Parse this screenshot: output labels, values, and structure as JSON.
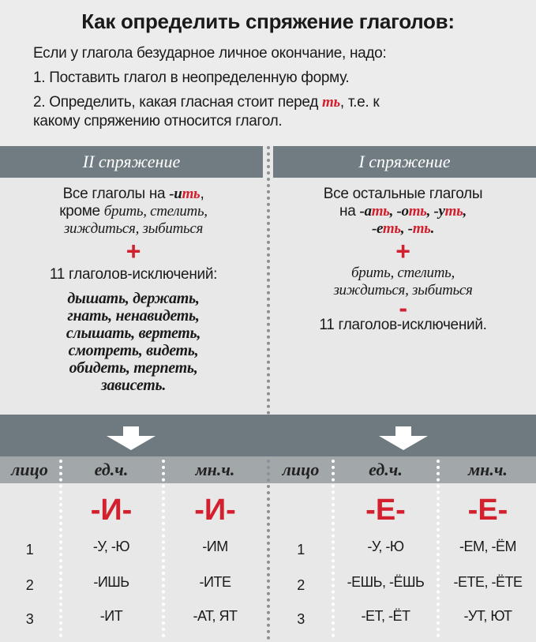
{
  "title": "Как определить спряжение глаголов:",
  "intro": {
    "line1": "Если у глагола безударное личное окончание, надо:",
    "line2": "1. Поставить глагол в неопределенную форму.",
    "line3_a": "2. Определить, какая гласная стоит перед ",
    "line3_b": "ть",
    "line3_c": ", т.е. к",
    "line4": "какому спряжению относится глагол."
  },
  "left": {
    "header": "II спряжение",
    "l1_a": "Все глаголы на ",
    "l1_b": "-и",
    "l1_c": "ть",
    "l1_d": ",",
    "l2_a": "кроме ",
    "l2_b": "брить, стелить,",
    "l3": "зиждиться, зыбиться",
    "plus": "+",
    "exceptions_label": "11 глаголов-исключений:",
    "exceptions": [
      "дышать, держать,",
      "гнать, ненавидеть,",
      "слышать, вертеть,",
      "смотреть, видеть,",
      "обидеть, терпеть,",
      "зависеть."
    ]
  },
  "right": {
    "header": "I спряжение",
    "l1": "Все остальные глаголы",
    "l2_pre": "на ",
    "endings": [
      {
        "v": "-а",
        "t": "ть",
        "s": ", "
      },
      {
        "v": "-о",
        "t": "ть",
        "s": ", "
      },
      {
        "v": "-у",
        "t": "ть",
        "s": ","
      }
    ],
    "endings2": [
      {
        "v": "-е",
        "t": "ть",
        "s": ", "
      },
      {
        "v": "-",
        "t": "ть",
        "s": "."
      }
    ],
    "plus": "+",
    "l4": "брить, стелить,",
    "l5": "зиждиться, зыбиться",
    "minus": "-",
    "l6": "11 глаголов-исключений."
  },
  "table": {
    "headers": [
      "лицо",
      "ед.ч.",
      "мн.ч.",
      "лицо",
      "ед.ч.",
      "мн.ч."
    ],
    "vowels": [
      "-И-",
      "-И-",
      "-Е-",
      "-Е-"
    ],
    "rows": [
      [
        "1",
        "-У, -Ю",
        "-ИМ",
        "1",
        "-У, -Ю",
        "-ЕМ, -ЁМ"
      ],
      [
        "2",
        "-ИШЬ",
        "-ИТЕ",
        "2",
        "-ЕШЬ, -ЁШЬ",
        "-ЕТЕ, -ЁТЕ"
      ],
      [
        "3",
        "-ИТ",
        "-АТ, ЯТ",
        "3",
        "-ЕТ, -ЁТ",
        "-УТ, ЮТ"
      ]
    ]
  },
  "colors": {
    "accent": "#d3202f",
    "band": "#717c82",
    "header_row": "#a2a7aa"
  }
}
